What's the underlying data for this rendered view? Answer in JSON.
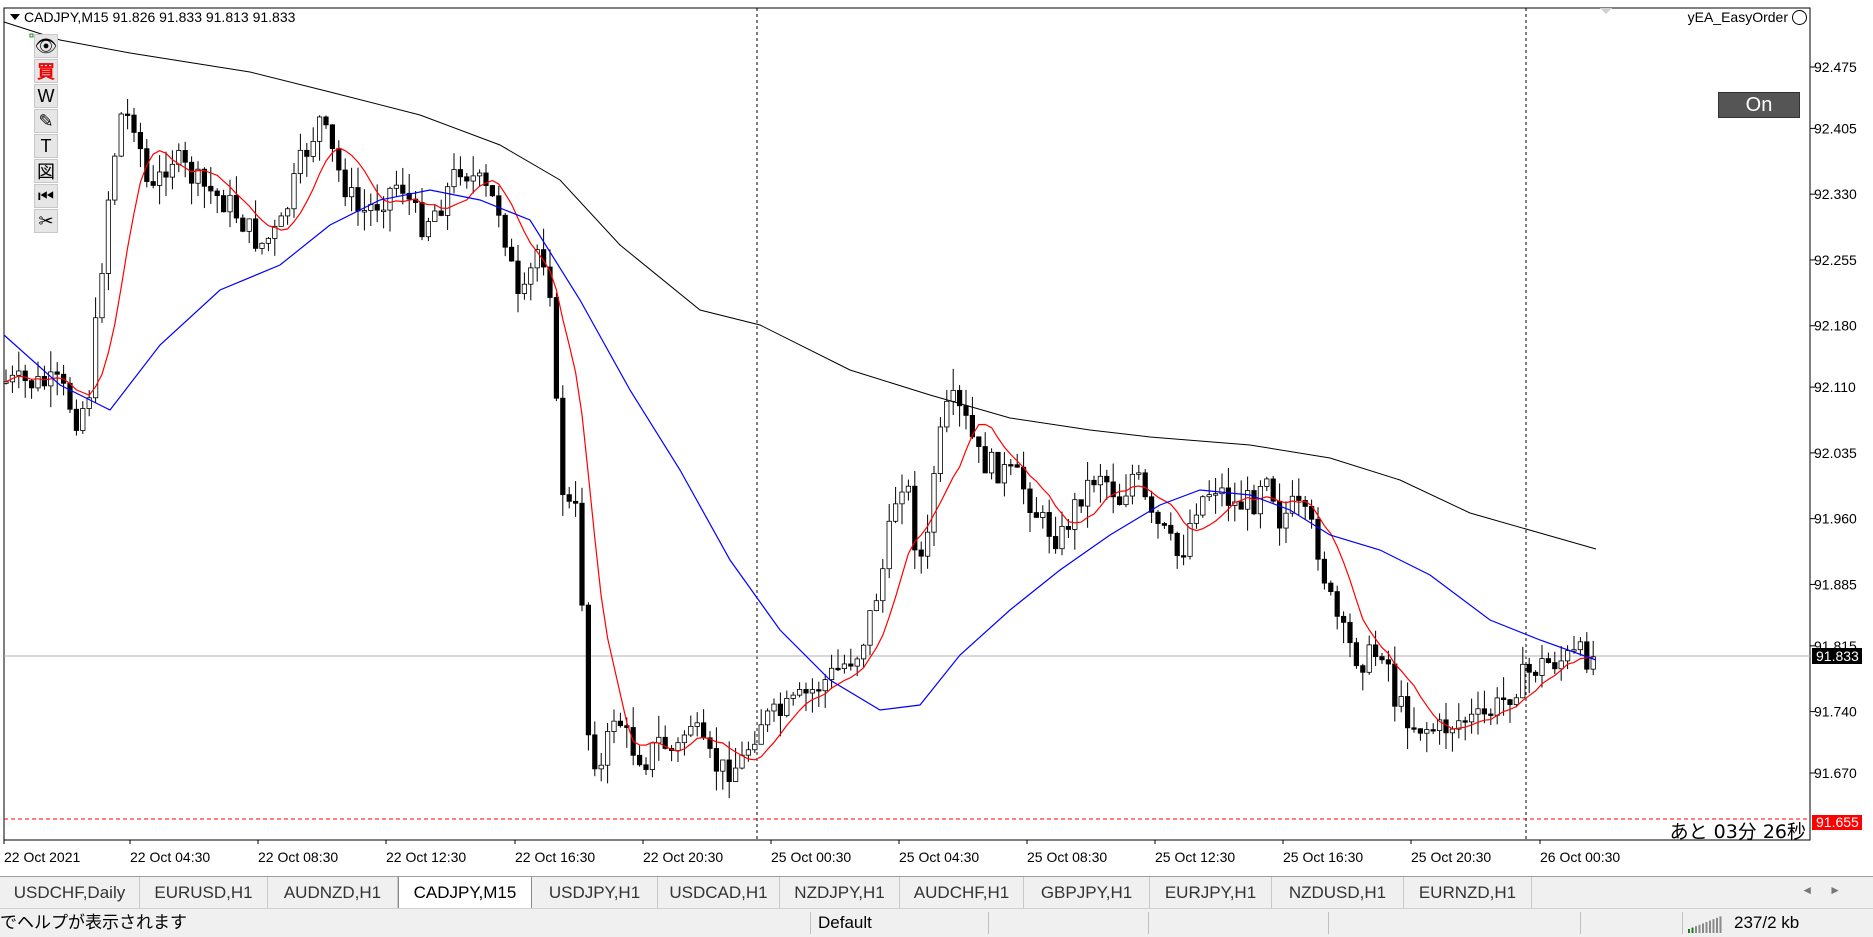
{
  "chart": {
    "symbol_info": "CADJPY,M15  91.826 91.833 91.813 91.833",
    "ea_name": "yEA_EasyOrder",
    "on_button": "On",
    "countdown": "あと 03分 26秒",
    "price_axis": [
      "92.475",
      "92.405",
      "92.330",
      "92.255",
      "92.180",
      "92.110",
      "92.035",
      "91.960",
      "91.885",
      "91.815",
      "91.740",
      "91.670"
    ],
    "current_price": "91.833",
    "low_price": "91.655",
    "time_axis": [
      "22 Oct 2021",
      "22 Oct 04:30",
      "22 Oct 08:30",
      "22 Oct 12:30",
      "22 Oct 16:30",
      "22 Oct 20:30",
      "25 Oct 00:30",
      "25 Oct 04:30",
      "25 Oct 08:30",
      "25 Oct 12:30",
      "25 Oct 16:30",
      "25 Oct 20:30",
      "26 Oct 00:30"
    ],
    "colors": {
      "ma_fast": "#ff0000",
      "ma_mid": "#0000ff",
      "ma_slow": "#000000",
      "candle": "#000000",
      "background": "#ffffff",
      "low_line": "#ff0000",
      "price_tag_bg": "#000000",
      "low_tag_bg": "#ff0000"
    }
  },
  "toolbar": [
    {
      "icon": "eye-icon",
      "glyph": "👁"
    },
    {
      "icon": "buy-icon",
      "glyph": "買"
    },
    {
      "icon": "w-icon",
      "glyph": "W"
    },
    {
      "icon": "pencil-icon",
      "glyph": "✎"
    },
    {
      "icon": "text-icon",
      "glyph": "T"
    },
    {
      "icon": "shape-icon",
      "glyph": "図"
    },
    {
      "icon": "rewind-icon",
      "glyph": "⏮"
    },
    {
      "icon": "scissors-icon",
      "glyph": "✂"
    }
  ],
  "tabs": [
    {
      "label": "USDCHF,Daily",
      "active": false
    },
    {
      "label": "EURUSD,H1",
      "active": false
    },
    {
      "label": "AUDNZD,H1",
      "active": false
    },
    {
      "label": "CADJPY,M15",
      "active": true
    },
    {
      "label": "USDJPY,H1",
      "active": false
    },
    {
      "label": "USDCAD,H1",
      "active": false
    },
    {
      "label": "NZDJPY,H1",
      "active": false
    },
    {
      "label": "AUDCHF,H1",
      "active": false
    },
    {
      "label": "GBPJPY,H1",
      "active": false
    },
    {
      "label": "EURJPY,H1",
      "active": false
    },
    {
      "label": "NZDUSD,H1",
      "active": false
    },
    {
      "label": "EURNZD,H1",
      "active": false
    }
  ],
  "status": {
    "help_text": "でヘルプが表示されます",
    "profile": "Default",
    "traffic": "237/2 kb"
  }
}
